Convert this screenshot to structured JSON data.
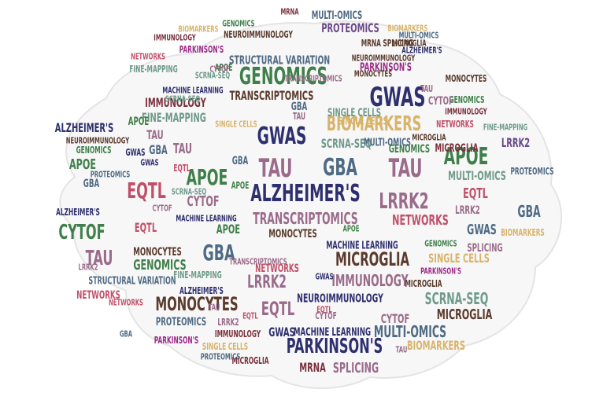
{
  "colors": {
    "navy": "#2e2f6e",
    "green": "#3f7f4a",
    "slate": "#4e6a84",
    "maroon": "#7a2f3c",
    "brown": "#5a3a2c",
    "tan": "#d8b36b",
    "magenta": "#9c2c8a",
    "mauve": "#9a6b8a",
    "teal": "#6f9a8a",
    "purple": "#6a4a8a",
    "rose": "#c0506a",
    "grey": "#6a6a6a",
    "olive": "#7a9a5a"
  },
  "words": {
    "w1": "ALZHEIMER'S",
    "w2": "GWAS",
    "w3": "GENOMICS",
    "w4": "PARKINSON'S",
    "w5": "MONOCYTES",
    "w6": "BIOMARKERS",
    "w7": "GWAS",
    "w8": "TAU",
    "w9": "GBA",
    "w10": "TAU",
    "w11": "APOE",
    "w12": "APOE",
    "w13": "LRRK2",
    "w14": "EQTL",
    "w15": "TRANSCRIPTOMICS",
    "w16": "MICROGLIA",
    "w17": "CYTOF",
    "w18": "GBA",
    "w19": "TAU",
    "w20": "IMMUNOLOGY",
    "w21": "EQTL",
    "w22": "SCRNA-SEQ",
    "w23": "LRRK2",
    "w24": "MULTI-OMICS",
    "w25": "GENOMICS",
    "w26": "MICROGLIA",
    "w27": "STRUCTURAL VARIATION",
    "w28": "NEUROIMMUNOLOGY",
    "w29": "SINGLE CELLS",
    "w30": "FINE-MAPPING",
    "w31": "GENOMICS",
    "w32": "TRANSCRIPTOMICS",
    "w33": "SCRNA-SEQ",
    "w34": "NETWORKS",
    "w35": "MACHINE LEARNING",
    "w36": "SPLICING",
    "w37": "MRNA",
    "w38": "PROTEOMICS",
    "w39": "CYTOF",
    "w40": "GWAS",
    "w41": "APOE",
    "w42": "GBA",
    "w43": "IMMUNOLOGY",
    "w44": "ALZHEIMER'S",
    "w45": "NEUROIMMUNOLOGY",
    "w46": "PARKINSON'S",
    "w47": "NETWORKS",
    "w48": "MICROGLIA",
    "w49": "GBA",
    "w50": "LRRK2",
    "w51": "EQTL",
    "w52": "TAU",
    "w53": "CYTOF",
    "w54": "MONOCYTES",
    "w55": "FINE-MAPPING",
    "w56": "SINGLE CELLS",
    "w57": "EQTL",
    "w58": "MULTI-OMICS",
    "w59": "BIOMARKERS",
    "w60": "PROTEOMICS",
    "w61": "GENOMICS",
    "w62": "NETWORKS",
    "w63": "CYTOF",
    "w64": "MICROGLIA",
    "w65": "SCRNA-SEQ",
    "w66": "LRRK2",
    "w67": "BIOMARKERS",
    "w68": "MACHINE LEARNING",
    "w69": "TAU",
    "w70": "APOE",
    "w71": "GWAS",
    "w72": "PROTEOMICS",
    "w73": "MULTI-OMICS",
    "w74": "IMMUNOLOGY",
    "w75": "MRNA SPLICING",
    "w76": "PARKINSON'S",
    "w77": "ALZHEIMER'S",
    "w78": "NETWORKS",
    "w79": "MONOCYTES",
    "w80": "GBA",
    "w81": "EQTL",
    "w82": "CYTOF",
    "w83": "APOE",
    "w84": "FINE-MAPPING",
    "w85": "NEUROIMMUNOLOGY",
    "w86": "MICROGLIA",
    "w87": "PROTEOMICS",
    "w88": "SINGLE CELLS",
    "w89": "MRNA",
    "w90": "SPLICING",
    "w91": "GWAS",
    "w92": "MACHINE LEARNING",
    "w93": "STRUCTURAL VARIATION",
    "w94": "MONOCYTES",
    "w95": "GENOMICS",
    "w96": "TAU",
    "w97": "GBA",
    "w98": "APOE",
    "w99": "LRRK2",
    "w100": "CYTOF",
    "w101": "PARKINSON'S",
    "w102": "ALZHEIMER'S",
    "w103": "IMMUNOLOGY",
    "w104": "GENOMICS",
    "w105": "SINGLE CELLS",
    "w106": "SCRNA-SEQ",
    "w107": "GWAS",
    "w108": "MICROGLIA",
    "w109": "BIOMARKERS",
    "w110": "NETWORKS",
    "w111": "EQTL",
    "w112": "TAU",
    "w113": "MULTI-OMICS",
    "w114": "TRANSCRIPTOMICS",
    "w115": "IMMUNOLOGY",
    "w116": "PROTEOMICS",
    "w117": "MACHINE LEARNING",
    "w118": "GBA",
    "w119": "PARKINSON'S",
    "w120": "ALZHEIMER'S",
    "w121": "NEUROIMMUNOLOGY",
    "w122": "SCRNA-SEQ",
    "w123": "TAU",
    "w124": "APOE",
    "w125": "GENOMICS",
    "w126": "MONOCYTES",
    "w127": "FINE-MAPPING",
    "w128": "EQTL",
    "w129": "LRRK2",
    "w130": "CYTOF",
    "w131": "BIOMARKERS",
    "w132": "MICROGLIA",
    "w133": "GWAS",
    "w134": "SINGLE CELLS",
    "w135": "MULTI-OMICS",
    "w136": "NETWORKS",
    "w137": "GBA",
    "w138": "TAU",
    "w139": "APOE",
    "w140": "TRANSCRIPTOMICS"
  }
}
